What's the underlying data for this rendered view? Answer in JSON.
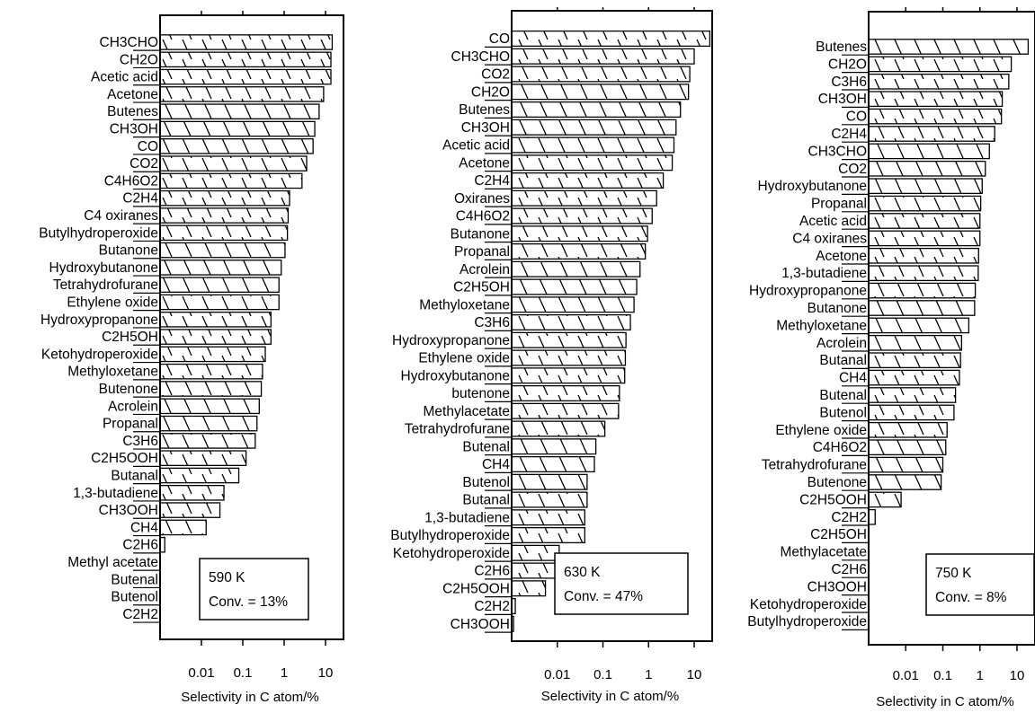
{
  "chart_data": [
    {
      "type": "bar",
      "orientation": "horizontal",
      "x_scale": "log",
      "xlim": [
        0.001,
        20
      ],
      "xticks": [
        0.01,
        0.1,
        1,
        10
      ],
      "xtick_labels": [
        "0.01",
        "0.1",
        "1",
        "10"
      ],
      "xlabel": "Selectivity in C atom/%",
      "annotation": {
        "temperature": "590 K",
        "conversion": "Conv. = 13%"
      },
      "categories": [
        "CH3CHO",
        "CH2O",
        "Acetic acid",
        "Acetone",
        "Butenes",
        "CH3OH",
        "CO",
        "CO2",
        "C4H6O2",
        "C2H4",
        "C4 oxiranes",
        "Butylhydroperoxide",
        "Butanone",
        "Hydroxybutanone",
        "Tetrahydrofurane",
        "Ethylene oxide",
        "Hydroxypropanone",
        "C2H5OH",
        "Ketohydroperoxide",
        "Methyloxetane",
        "Butenone",
        "Acrolein",
        "Propanal",
        "C3H6",
        "C2H5OOH",
        "Butanal",
        "1,3-butadiene",
        "CH3OOH",
        "CH4",
        "C2H6",
        "Methyl acetate",
        "Butenal",
        "Butenol",
        "C2H2"
      ],
      "values": [
        14.5,
        13.5,
        13.5,
        9.0,
        7.0,
        5.5,
        5.0,
        3.5,
        2.7,
        1.35,
        1.25,
        1.2,
        1.05,
        0.85,
        0.75,
        0.75,
        0.48,
        0.48,
        0.35,
        0.3,
        0.28,
        0.25,
        0.22,
        0.2,
        0.12,
        0.08,
        0.035,
        0.028,
        0.013,
        0.0013,
        0,
        0,
        0,
        0
      ]
    },
    {
      "type": "bar",
      "orientation": "horizontal",
      "x_scale": "log",
      "xlim": [
        0.001,
        30
      ],
      "xticks": [
        0.01,
        0.1,
        1,
        10
      ],
      "xtick_labels": [
        "0.01",
        "0.1",
        "1",
        "10"
      ],
      "xlabel": "Selectivity in C atom/%",
      "annotation": {
        "temperature": "630 K",
        "conversion": "Conv. = 47%"
      },
      "categories": [
        "CO",
        "CH3CHO",
        "CO2",
        "CH2O",
        "Butenes",
        "CH3OH",
        "Acetic acid",
        "Acetone",
        "C2H4",
        "Oxiranes",
        "C4H6O2",
        "Butanone",
        "Propanal",
        "Acrolein",
        "C2H5OH",
        "Methyloxetane",
        "C3H6",
        "Hydroxypropanone",
        "Ethylene oxide",
        "Hydroxybutanone",
        "butenone",
        "Methylacetate",
        "Tetrahydrofurane",
        "Butenal",
        "CH4",
        "Butenol",
        "Butanal",
        "1,3-butadiene",
        "Butylhydroperoxide",
        "Ketohydroperoxide",
        "C2H6",
        "C2H5OOH",
        "C2H2",
        "CH3OOH"
      ],
      "values": [
        22,
        10,
        8,
        7.5,
        5,
        4,
        3.6,
        3.3,
        2.1,
        1.5,
        1.2,
        0.95,
        0.85,
        0.65,
        0.55,
        0.48,
        0.4,
        0.32,
        0.31,
        0.3,
        0.23,
        0.22,
        0.11,
        0.07,
        0.065,
        0.045,
        0.045,
        0.04,
        0.04,
        0.011,
        0.009,
        0.0055,
        0.0012,
        0.0011
      ]
    },
    {
      "type": "bar",
      "orientation": "horizontal",
      "x_scale": "log",
      "xlim": [
        0.001,
        20
      ],
      "xticks": [
        0.01,
        0.1,
        1,
        10
      ],
      "xtick_labels": [
        "0.01",
        "0.1",
        "1",
        "10"
      ],
      "xlabel": "Selectivity in C atom/%",
      "annotation": {
        "temperature": "750 K",
        "conversion": "Conv. = 8%"
      },
      "categories": [
        "Butenes",
        "CH2O",
        "C3H6",
        "CH3OH",
        "CO",
        "C2H4",
        "CH3CHO",
        "CO2",
        "Hydroxybutanone",
        "Propanal",
        "Acetic acid",
        "C4 oxiranes",
        "Acetone",
        "1,3-butadiene",
        "Hydroxypropanone",
        "Butanone",
        "Methyloxetane",
        "Acrolein",
        "Butanal",
        "CH4",
        "Butenal",
        "Butenol",
        "Ethylene oxide",
        "C4H6O2",
        "Tetrahydrofurane",
        "Butenone",
        "C2H5OOH",
        "C2H2",
        "C2H5OH",
        "Methylacetate",
        "C2H6",
        "CH3OOH",
        "Ketohydroperoxide",
        "Butylhydroperoxide"
      ],
      "values": [
        20,
        7,
        6,
        4,
        3.8,
        2.5,
        1.8,
        1.4,
        1.15,
        1.05,
        1.0,
        1.0,
        0.92,
        0.9,
        0.75,
        0.72,
        0.5,
        0.32,
        0.3,
        0.28,
        0.22,
        0.2,
        0.13,
        0.12,
        0.1,
        0.09,
        0.0075,
        0.0015,
        0,
        0,
        0,
        0,
        0,
        0
      ]
    }
  ]
}
